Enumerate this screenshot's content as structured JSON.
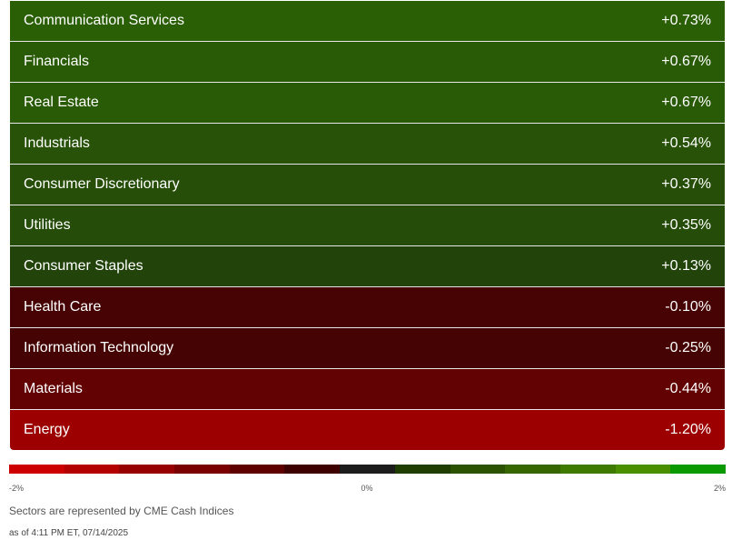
{
  "sectors": [
    {
      "name": "Communication Services",
      "change": "+0.73%",
      "color": "#2b5f06"
    },
    {
      "name": "Financials",
      "change": "+0.67%",
      "color": "#295a06"
    },
    {
      "name": "Real Estate",
      "change": "+0.67%",
      "color": "#295a06"
    },
    {
      "name": "Industrials",
      "change": "+0.54%",
      "color": "#275208"
    },
    {
      "name": "Consumer Discretionary",
      "change": "+0.37%",
      "color": "#264e08"
    },
    {
      "name": "Utilities",
      "change": "+0.35%",
      "color": "#254c09"
    },
    {
      "name": "Consumer Staples",
      "change": "+0.13%",
      "color": "#22440b"
    },
    {
      "name": "Health Care",
      "change": "-0.10%",
      "color": "#470303"
    },
    {
      "name": "Information Technology",
      "change": "-0.25%",
      "color": "#450303"
    },
    {
      "name": "Materials",
      "change": "-0.44%",
      "color": "#630202"
    },
    {
      "name": "Energy",
      "change": "-1.20%",
      "color": "#9c0000"
    }
  ],
  "scale": {
    "colors": [
      "#cc0000",
      "#b30000",
      "#970000",
      "#7a0000",
      "#5e0000",
      "#3c0000",
      "#1c1c1c",
      "#1f3d00",
      "#2a5200",
      "#356600",
      "#3f7a00",
      "#4a8f00",
      "#0a9900"
    ],
    "min_label": "-2%",
    "mid_label": "0%",
    "max_label": "2%"
  },
  "note": "Sectors are represented by CME Cash Indices",
  "as_of": "as of 4:11 PM ET, 07/14/2025"
}
